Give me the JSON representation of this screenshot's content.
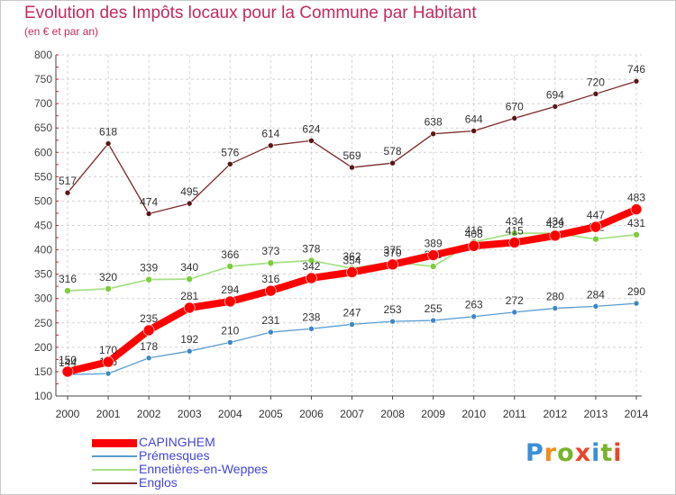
{
  "title": "Evolution des Impôts locaux pour la Commune par Habitant",
  "subtitle": "(en € et par an)",
  "logo": {
    "text": "Proxiti",
    "colors": [
      "#3a8fd6",
      "#f08c1e",
      "#78b428",
      "#e8462a",
      "#3a8fd6",
      "#78b428",
      "#e8462a"
    ]
  },
  "chart_data": {
    "type": "line",
    "categories": [
      "2000",
      "2001",
      "2002",
      "2003",
      "2004",
      "2005",
      "2006",
      "2007",
      "2008",
      "2009",
      "2010",
      "2011",
      "2012",
      "2013",
      "2014"
    ],
    "y_ticks": [
      "100",
      "150",
      "200",
      "250",
      "300",
      "350",
      "400",
      "450",
      "500",
      "550",
      "600",
      "650",
      "700",
      "750",
      "800"
    ],
    "ylim": [
      100,
      800
    ],
    "grid": true,
    "legend_position": "bottom-left",
    "series": [
      {
        "name": "Englos",
        "color": "#7a2a2a",
        "marker": "#5a1616",
        "values": [
          517,
          618,
          474,
          495,
          576,
          614,
          624,
          569,
          578,
          638,
          644,
          670,
          694,
          720,
          746
        ],
        "labels": [
          "517",
          "618",
          "474",
          "495",
          "576",
          "614",
          "624",
          "569",
          "578",
          "638",
          "644",
          "670",
          "694",
          "720",
          "746"
        ]
      },
      {
        "name": "Ennetières-en-Weppes",
        "color": "#a8e088",
        "marker": "#7ccc3c",
        "values": [
          316,
          320,
          339,
          340,
          366,
          373,
          378,
          362,
          375,
          366,
          416,
          434,
          434,
          422,
          431
        ],
        "labels": [
          "316",
          "320",
          "339",
          "340",
          "366",
          "373",
          "378",
          "362",
          "375",
          "366",
          "416",
          "434",
          "434",
          "422",
          "431"
        ]
      },
      {
        "name": "Prémesques",
        "color": "#5a9cd0",
        "marker": "#3d86c8",
        "values": [
          144,
          146,
          178,
          192,
          210,
          231,
          238,
          247,
          253,
          255,
          263,
          272,
          280,
          284,
          290
        ],
        "labels": [
          "144",
          "146",
          "178",
          "192",
          "210",
          "231",
          "238",
          "247",
          "253",
          "255",
          "263",
          "272",
          "280",
          "284",
          "290"
        ]
      },
      {
        "name": "CAPINGHEM",
        "color": "#ff0000",
        "marker": "#ff0000",
        "values": [
          150,
          170,
          235,
          281,
          294,
          316,
          342,
          354,
          370,
          389,
          408,
          415,
          429,
          447,
          483
        ],
        "labels": [
          "150",
          "170",
          "235",
          "281",
          "294",
          "316",
          "342",
          "354",
          "370",
          "389",
          "408",
          "415",
          "429",
          "447",
          "483"
        ]
      }
    ],
    "legend_order": [
      "CAPINGHEM",
      "Prémesques",
      "Ennetières-en-Weppes",
      "Englos"
    ]
  }
}
